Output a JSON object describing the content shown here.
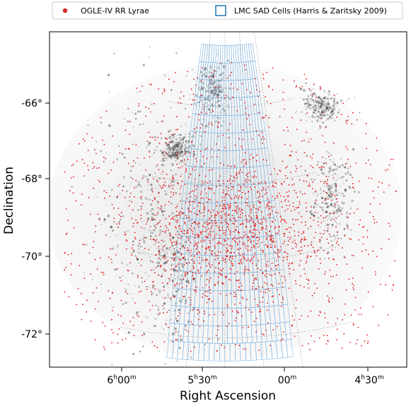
{
  "chart_data": {
    "type": "scatter",
    "title": "",
    "xlabel": "Right Ascension",
    "ylabel": "Declination",
    "x_ticks": [
      {
        "main": "6",
        "sup1": "h",
        "mid": "00",
        "sup2": "m"
      },
      {
        "main": "5",
        "sup1": "h",
        "mid": "30",
        "sup2": "m"
      },
      {
        "main": "",
        "sup1": "",
        "mid": "00",
        "sup2": "m"
      },
      {
        "main": "4",
        "sup1": "h",
        "mid": "30",
        "sup2": "m"
      }
    ],
    "y_ticks": [
      "-66°",
      "-68°",
      "-70°",
      "-72°"
    ],
    "ra_range_deg": [
      97.0,
      64.0
    ],
    "dec_range_deg": [
      -72.8,
      -63.6
    ],
    "grid": true,
    "legend": {
      "placement": "top",
      "entries": [
        {
          "label": "OGLE-IV RR Lyrae",
          "marker": "dot",
          "color": "#d62728"
        },
        {
          "label": "LMC SAD Cells (Harris & Zaritsky 2009)",
          "marker": "open-square",
          "color": "#1f77b4"
        }
      ]
    },
    "series": [
      {
        "name": "OGLE-IV RR Lyrae",
        "kind": "points",
        "color": "#e41a1c",
        "density_center": {
          "ra_deg": 80.5,
          "dec_deg": -69.2
        },
        "approx_count_shown": 2200
      },
      {
        "name": "LMC SAD Cells (Harris & Zaritsky 2009)",
        "kind": "cell-grid",
        "color": "#7fb2dd",
        "dec_range": [
          -72.6,
          -64.4
        ],
        "ra_range": [
          94.0,
          68.0
        ]
      }
    ],
    "background_image": "LMC greyscale optical image"
  }
}
